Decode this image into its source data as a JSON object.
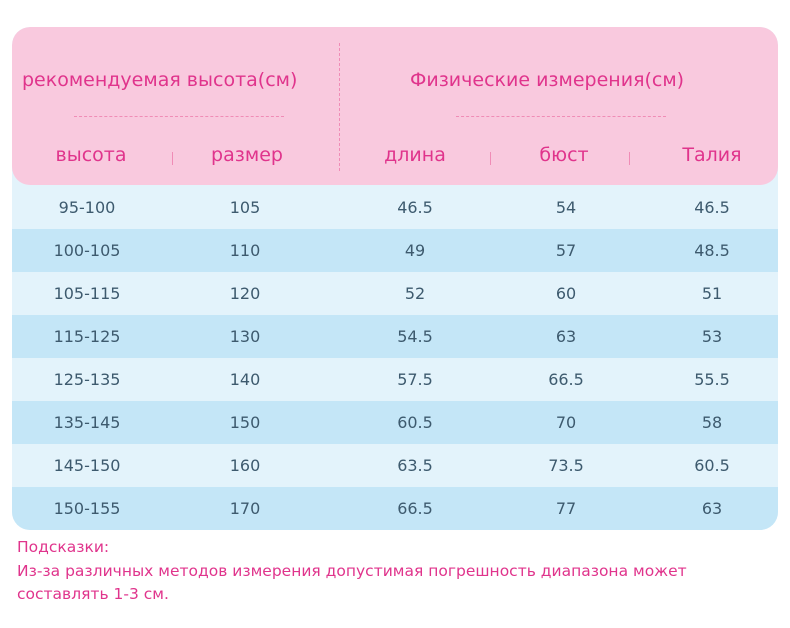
{
  "header": {
    "group_left": "рекомендуемая высота(см)",
    "group_right": "Физические измерения(см)",
    "columns": [
      "высота",
      "размер",
      "длина",
      "бюст",
      "Талия"
    ]
  },
  "rows": [
    [
      "95-100",
      "105",
      "46.5",
      "54",
      "46.5"
    ],
    [
      "100-105",
      "110",
      "49",
      "57",
      "48.5"
    ],
    [
      "105-115",
      "120",
      "52",
      "60",
      "51"
    ],
    [
      "115-125",
      "130",
      "54.5",
      "63",
      "53"
    ],
    [
      "125-135",
      "140",
      "57.5",
      "66.5",
      "55.5"
    ],
    [
      "135-145",
      "150",
      "60.5",
      "70",
      "58"
    ],
    [
      "145-150",
      "160",
      "63.5",
      "73.5",
      "60.5"
    ],
    [
      "150-155",
      "170",
      "66.5",
      "77",
      "63"
    ]
  ],
  "note": {
    "title": "Подсказки:",
    "line1": "Из-за различных методов измерения допустимая погрешность диапазона может",
    "line2": "составлять 1-3 см."
  },
  "colors": {
    "header_bg": "#f9c9de",
    "accent_pink": "#e0348c",
    "row_light": "#e3f3fb",
    "row_dark": "#c4e6f7",
    "body_text": "#3d5a6e"
  }
}
